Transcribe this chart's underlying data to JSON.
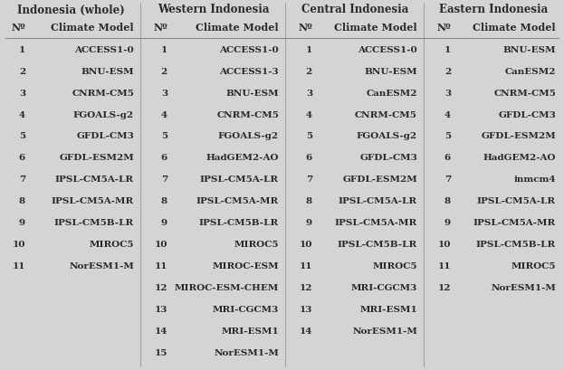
{
  "bg_color": "#d4d4d4",
  "text_color": "#2a2a2a",
  "sections": [
    "Indonesia (whole)",
    "Western Indonesia",
    "Central Indonesia",
    "Eastern Indonesia"
  ],
  "col_header_num": "Nº",
  "col_header_model": "Climate Model",
  "indonesia_whole": [
    [
      "1",
      "ACCESS1-0"
    ],
    [
      "2",
      "BNU-ESM"
    ],
    [
      "3",
      "CNRM-CM5"
    ],
    [
      "4",
      "FGOALS-g2"
    ],
    [
      "5",
      "GFDL-CM3"
    ],
    [
      "6",
      "GFDL-ESM2M"
    ],
    [
      "7",
      "IPSL-CM5A-LR"
    ],
    [
      "8",
      "IPSL-CM5A-MR"
    ],
    [
      "9",
      "IPSL-CM5B-LR"
    ],
    [
      "10",
      "MIROC5"
    ],
    [
      "11",
      "NorESM1-M"
    ]
  ],
  "western_indonesia": [
    [
      "1",
      "ACCESS1-0"
    ],
    [
      "2",
      "ACCESS1-3"
    ],
    [
      "3",
      "BNU-ESM"
    ],
    [
      "4",
      "CNRM-CM5"
    ],
    [
      "5",
      "FGOALS-g2"
    ],
    [
      "6",
      "HadGEM2-AO"
    ],
    [
      "7",
      "IPSL-CM5A-LR"
    ],
    [
      "8",
      "IPSL-CM5A-MR"
    ],
    [
      "9",
      "IPSL-CM5B-LR"
    ],
    [
      "10",
      "MIROC5"
    ],
    [
      "11",
      "MIROC-ESM"
    ],
    [
      "12",
      "MIROC-ESM-CHEM"
    ],
    [
      "13",
      "MRI-CGCM3"
    ],
    [
      "14",
      "MRI-ESM1"
    ],
    [
      "15",
      "NorESM1-M"
    ]
  ],
  "central_indonesia": [
    [
      "1",
      "ACCESS1-0"
    ],
    [
      "2",
      "BNU-ESM"
    ],
    [
      "3",
      "CanESM2"
    ],
    [
      "4",
      "CNRM-CM5"
    ],
    [
      "5",
      "FGOALS-g2"
    ],
    [
      "6",
      "GFDL-CM3"
    ],
    [
      "7",
      "GFDL-ESM2M"
    ],
    [
      "8",
      "IPSL-CM5A-LR"
    ],
    [
      "9",
      "IPSL-CM5A-MR"
    ],
    [
      "10",
      "IPSL-CM5B-LR"
    ],
    [
      "11",
      "MIROC5"
    ],
    [
      "12",
      "MRI-CGCM3"
    ],
    [
      "13",
      "MRI-ESM1"
    ],
    [
      "14",
      "NorESM1-M"
    ]
  ],
  "eastern_indonesia": [
    [
      "1",
      "BNU-ESM"
    ],
    [
      "2",
      "CanESM2"
    ],
    [
      "3",
      "CNRM-CM5"
    ],
    [
      "4",
      "GFDL-CM3"
    ],
    [
      "5",
      "GFDL-ESM2M"
    ],
    [
      "6",
      "HadGEM2-AO"
    ],
    [
      "7",
      "inmcm4"
    ],
    [
      "8",
      "IPSL-CM5A-LR"
    ],
    [
      "9",
      "IPSL-CM5A-MR"
    ],
    [
      "10",
      "IPSL-CM5B-LR"
    ],
    [
      "11",
      "MIROC5"
    ],
    [
      "12",
      "NorESM1-M"
    ]
  ],
  "section_font_size": 8.5,
  "header_font_size": 8.0,
  "data_font_size": 7.5,
  "line_color": "#888888"
}
